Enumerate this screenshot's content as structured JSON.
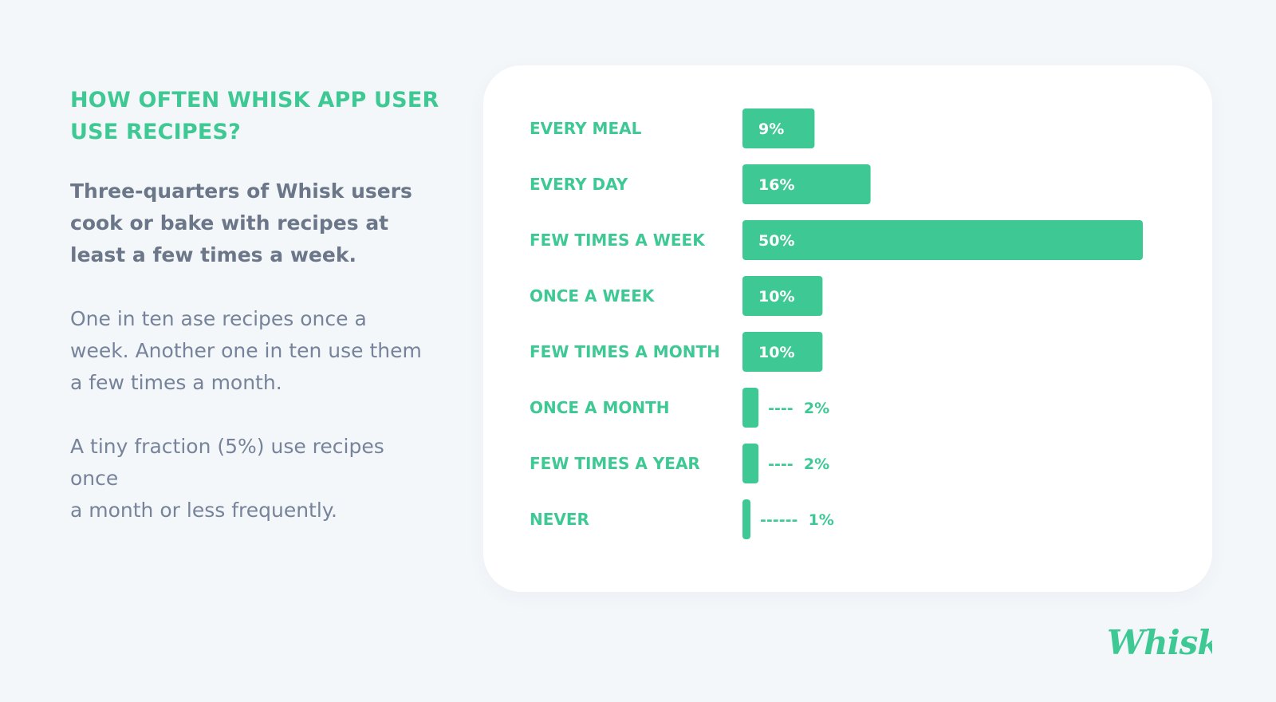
{
  "left_panel": {
    "heading_line1": "HOW OFTEN WHISK APP USER",
    "heading_line2": "USE RECIPES?",
    "lead_line1": "Three-quarters of Whisk users",
    "lead_line2": "cook or bake with recipes at",
    "lead_line3": "least a few times a week.",
    "para1_line1": "One in ten ase recipes once a",
    "para1_line2": "week. Another one in ten use them",
    "para1_line3": "a few times a month.",
    "para2_line1": "A tiny fraction (5%) use recipes",
    "para2_line2": "once",
    "para2_line3": "a month or less frequently."
  },
  "logo": {
    "text": "Whisk"
  },
  "colors": {
    "accent": "#3ec994",
    "lead_text": "#6b7689",
    "body_text": "#76839a",
    "background": "#f4f7fa",
    "card": "#ffffff"
  },
  "chart_data": {
    "type": "bar",
    "orientation": "horizontal",
    "categories": [
      "EVERY MEAL",
      "EVERY DAY",
      "FEW TIMES A WEEK",
      "ONCE A WEEK",
      "FEW TIMES A MONTH",
      "ONCE A MONTH",
      "FEW TIMES A YEAR",
      "NEVER"
    ],
    "values": [
      9,
      16,
      50,
      10,
      10,
      2,
      2,
      1
    ],
    "value_labels": [
      "9%",
      "16%",
      "50%",
      "10%",
      "10%",
      "----  2%",
      "----  2%",
      "------  1%"
    ],
    "title": "",
    "xlabel": "",
    "ylabel": "",
    "xlim": [
      0,
      50
    ],
    "grid": false,
    "legend": "none"
  }
}
